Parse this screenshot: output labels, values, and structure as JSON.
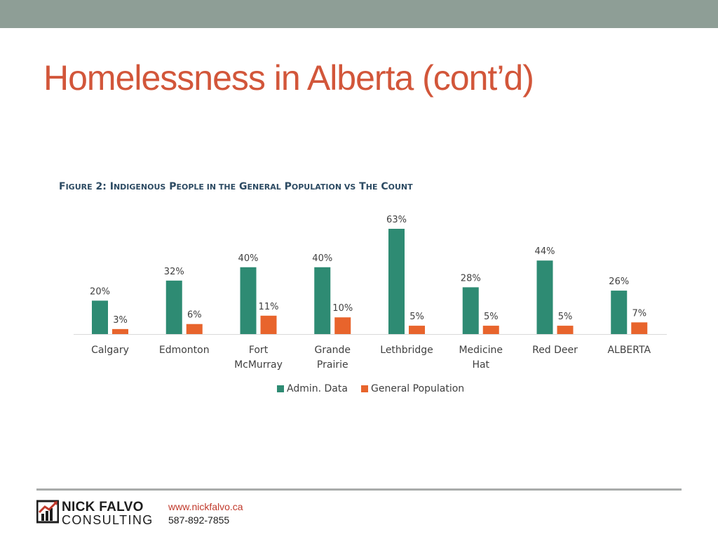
{
  "slide": {
    "title": "Homelessness in Alberta (cont’d)",
    "colors": {
      "top_bar": "#8e9e96",
      "title": "#d2563a",
      "rule": "#a9acab"
    }
  },
  "figure": {
    "caption_prefix": "F",
    "caption_prefix_small": "IGURE",
    "caption_number": " 2: ",
    "caption_words": [
      {
        "cap": "I",
        "rest": "NDIGENOUS"
      },
      {
        "cap": "P",
        "rest": "EOPLE IN THE"
      },
      {
        "cap": "G",
        "rest": "ENERAL"
      },
      {
        "cap": "P",
        "rest": "OPULATION VS"
      },
      {
        "cap": "T",
        "rest": "HE"
      },
      {
        "cap": "C",
        "rest": "OUNT"
      }
    ]
  },
  "chart_data": {
    "type": "bar",
    "title": "Figure 2: Indigenous People in the General Population vs The Count",
    "categories": [
      [
        "Calgary"
      ],
      [
        "Edmonton"
      ],
      [
        "Fort",
        "McMurray"
      ],
      [
        "Grande",
        "Prairie"
      ],
      [
        "Lethbridge"
      ],
      [
        "Medicine",
        "Hat"
      ],
      [
        "Red Deer"
      ],
      [
        "ALBERTA"
      ]
    ],
    "series": [
      {
        "name": "Admin. Data",
        "color": "#2e8b73",
        "values": [
          20,
          32,
          40,
          40,
          63,
          28,
          44,
          26
        ],
        "labels": [
          "20%",
          "32%",
          "40%",
          "40%",
          "63%",
          "28%",
          "44%",
          "26%"
        ]
      },
      {
        "name": "General Population",
        "color": "#e8642c",
        "values": [
          3,
          6,
          11,
          10,
          5,
          5,
          5,
          7
        ],
        "labels": [
          "3%",
          "6%",
          "11%",
          "10%",
          "5%",
          "5%",
          "5%",
          "7%"
        ]
      }
    ],
    "value_unit": "%",
    "ylim": [
      0,
      63
    ],
    "grid": false,
    "legend_position": "bottom-center",
    "y_axis_shown": false
  },
  "footer": {
    "logo_name": "NICK FALVO",
    "logo_sub": "CONSULTING",
    "url": "www.nickfalvo.ca",
    "phone": "587-892-7855"
  }
}
